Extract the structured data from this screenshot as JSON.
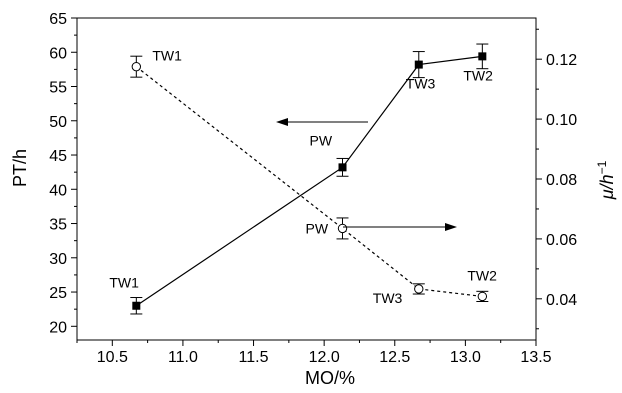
{
  "chart_data": {
    "type": "line",
    "title": "",
    "xlabel": "MO/%",
    "ylabel_left": "PT/h",
    "ylabel_right_main": "μ/h",
    "ylabel_right_sup": "−1",
    "xlim": [
      10.25,
      13.5
    ],
    "ylim_left": [
      18,
      65
    ],
    "ylim_right": [
      0.02625,
      0.13375
    ],
    "x_ticks": [
      10.5,
      11.0,
      11.5,
      12.0,
      12.5,
      13.0,
      13.5
    ],
    "x_tick_labels": [
      "10.5",
      "11.0",
      "11.5",
      "12.0",
      "12.5",
      "13.0",
      "13.5"
    ],
    "y_left_ticks": [
      20,
      25,
      30,
      35,
      40,
      45,
      50,
      55,
      60,
      65
    ],
    "y_left_tick_labels": [
      "20",
      "25",
      "30",
      "35",
      "40",
      "45",
      "50",
      "55",
      "60",
      "65"
    ],
    "y_right_ticks": [
      0.04,
      0.06,
      0.08,
      0.1,
      0.12
    ],
    "y_right_tick_labels": [
      "0.04",
      "0.06",
      "0.08",
      "0.10",
      "0.12"
    ],
    "grid": false,
    "series": [
      {
        "axis": "left",
        "marker": "filled-square",
        "line": "solid",
        "color": "#000000",
        "x": [
          10.67,
          12.13,
          12.67,
          13.12
        ],
        "y": [
          23.0,
          43.2,
          58.2,
          59.4
        ],
        "err": [
          1.2,
          1.3,
          1.9,
          1.8
        ],
        "point_labels": [
          "TW1",
          "PW",
          "TW3",
          "TW2"
        ]
      },
      {
        "axis": "right",
        "marker": "open-circle",
        "line": "dashed",
        "color": "#000000",
        "x": [
          10.67,
          12.13,
          12.67,
          13.12
        ],
        "y": [
          0.1175,
          0.0635,
          0.0433,
          0.0408
        ],
        "err": [
          0.0035,
          0.0035,
          0.0017,
          0.0017
        ],
        "point_labels": [
          "TW1",
          "PW",
          "TW3",
          "TW2"
        ]
      }
    ]
  }
}
